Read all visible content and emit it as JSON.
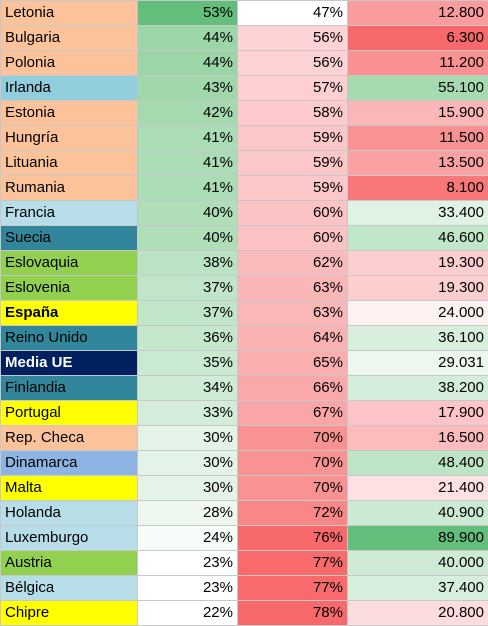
{
  "rows": [
    {
      "country": "Letonia",
      "p1": "53%",
      "p2": "47%",
      "value": "12.800",
      "bg": "#FCC39A",
      "fg": "#000000",
      "bold": false,
      "c1": "#63BE7B",
      "c2": "#FFFFFF",
      "c3": "#FA9C9E"
    },
    {
      "country": "Bulgaria",
      "p1": "44%",
      "p2": "56%",
      "value": "6.300",
      "bg": "#FCC39A",
      "fg": "#000000",
      "bold": false,
      "c1": "#9BD6A8",
      "c2": "#FDD3D5",
      "c3": "#F8696B"
    },
    {
      "country": "Polonia",
      "p1": "44%",
      "p2": "56%",
      "value": "11.200",
      "bg": "#FCC39A",
      "fg": "#000000",
      "bold": false,
      "c1": "#9BD6A8",
      "c2": "#FDD3D5",
      "c3": "#F99091"
    },
    {
      "country": "Irlanda",
      "p1": "43%",
      "p2": "57%",
      "value": "55.100",
      "bg": "#92CDDC",
      "fg": "#000000",
      "bold": false,
      "c1": "#A0D8AC",
      "c2": "#FDCFD1",
      "c3": "#A6DBB1"
    },
    {
      "country": "Estonia",
      "p1": "42%",
      "p2": "58%",
      "value": "15.900",
      "bg": "#FCC39A",
      "fg": "#000000",
      "bold": false,
      "c1": "#A5DAB0",
      "c2": "#FDCBCD",
      "c3": "#FCB6B7"
    },
    {
      "country": "Hungría",
      "p1": "41%",
      "p2": "59%",
      "value": "11.500",
      "bg": "#FCC39A",
      "fg": "#000000",
      "bold": false,
      "c1": "#AADCB5",
      "c2": "#FCC7C8",
      "c3": "#F99293"
    },
    {
      "country": "Lituania",
      "p1": "41%",
      "p2": "59%",
      "value": "13.500",
      "bg": "#FCC39A",
      "fg": "#000000",
      "bold": false,
      "c1": "#AADCB5",
      "c2": "#FCC7C8",
      "c3": "#FAA2A3"
    },
    {
      "country": "Rumania",
      "p1": "41%",
      "p2": "59%",
      "value": "8.100",
      "bg": "#FCC39A",
      "fg": "#000000",
      "bold": false,
      "c1": "#AADCB5",
      "c2": "#FCC7C8",
      "c3": "#F87778"
    },
    {
      "country": "Francia",
      "p1": "40%",
      "p2": "60%",
      "value": "33.400",
      "bg": "#B7DEE8",
      "fg": "#000000",
      "bold": false,
      "c1": "#AFDEB9",
      "c2": "#FCC3C4",
      "c3": "#E0F2E4"
    },
    {
      "country": "Suecia",
      "p1": "40%",
      "p2": "60%",
      "value": "46.600",
      "bg": "#31869B",
      "fg": "#000000",
      "bold": false,
      "c1": "#AFDEB9",
      "c2": "#FCC3C4",
      "c3": "#C1E6C9"
    },
    {
      "country": "Eslovaquia",
      "p1": "38%",
      "p2": "62%",
      "value": "19.300",
      "bg": "#92D050",
      "fg": "#000000",
      "bold": false,
      "c1": "#BAE3C3",
      "c2": "#FBBABC",
      "c3": "#FDCED0"
    },
    {
      "country": "Eslovenia",
      "p1": "37%",
      "p2": "63%",
      "value": "19.300",
      "bg": "#92D050",
      "fg": "#000000",
      "bold": false,
      "c1": "#C0E5C8",
      "c2": "#FBB6B7",
      "c3": "#FDCED0"
    },
    {
      "country": "España",
      "p1": "37%",
      "p2": "63%",
      "value": "24.000",
      "bg": "#FFFF00",
      "fg": "#000000",
      "bold": true,
      "c1": "#C0E5C8",
      "c2": "#FBB6B7",
      "c3": "#FEF1F1"
    },
    {
      "country": "Reino Unido",
      "p1": "36%",
      "p2": "64%",
      "value": "36.100",
      "bg": "#31869B",
      "fg": "#000000",
      "bold": false,
      "c1": "#C5E7CC",
      "c2": "#FBB2B3",
      "c3": "#D9EFDE"
    },
    {
      "country": "Media UE",
      "p1": "35%",
      "p2": "65%",
      "value": "29.031",
      "bg": "#002060",
      "fg": "#FFFFFF",
      "bold": true,
      "c1": "#CAE9D1",
      "c2": "#FAAEAF",
      "c3": "#EDF7EF"
    },
    {
      "country": "Finlandia",
      "p1": "34%",
      "p2": "66%",
      "value": "38.200",
      "bg": "#31869B",
      "fg": "#000000",
      "bold": false,
      "c1": "#CFEBD5",
      "c2": "#FAA9AB",
      "c3": "#D4EDDA"
    },
    {
      "country": "Portugal",
      "p1": "33%",
      "p2": "67%",
      "value": "17.900",
      "bg": "#FFFF00",
      "fg": "#000000",
      "bold": false,
      "c1": "#D4EDDA",
      "c2": "#FAA5A7",
      "c3": "#FDC5C7"
    },
    {
      "country": "Rep. Checa",
      "p1": "30%",
      "p2": "70%",
      "value": "16.500",
      "bg": "#FCC39A",
      "fg": "#000000",
      "bold": false,
      "c1": "#E3F3E7",
      "c2": "#F99293",
      "c3": "#FCBBBC"
    },
    {
      "country": "Dinamarca",
      "p1": "30%",
      "p2": "70%",
      "value": "48.400",
      "bg": "#8DB4E2",
      "fg": "#000000",
      "bold": false,
      "c1": "#E3F3E7",
      "c2": "#F99293",
      "c3": "#BCE4C5"
    },
    {
      "country": "Malta",
      "p1": "30%",
      "p2": "70%",
      "value": "21.400",
      "bg": "#FFFF00",
      "fg": "#000000",
      "bold": false,
      "c1": "#E3F3E7",
      "c2": "#F99293",
      "c3": "#FDE1E2"
    },
    {
      "country": "Holanda",
      "p1": "28%",
      "p2": "72%",
      "value": "40.900",
      "bg": "#B7DEE8",
      "fg": "#000000",
      "bold": false,
      "c1": "#EDF7EF",
      "c2": "#F98788",
      "c3": "#CCEAD3"
    },
    {
      "country": "Luxemburgo",
      "p1": "24%",
      "p2": "76%",
      "value": "89.900",
      "bg": "#B7DEE8",
      "fg": "#000000",
      "bold": false,
      "c1": "#F8FCF9",
      "c2": "#F8696B",
      "c3": "#63BE7B"
    },
    {
      "country": "Austria",
      "p1": "23%",
      "p2": "77%",
      "value": "40.000",
      "bg": "#92D050",
      "fg": "#000000",
      "bold": false,
      "c1": "#FEFFFE",
      "c2": "#F86A6C",
      "c3": "#CFEBD5"
    },
    {
      "country": "Bélgica",
      "p1": "23%",
      "p2": "77%",
      "value": "37.400",
      "bg": "#B7DEE8",
      "fg": "#000000",
      "bold": false,
      "c1": "#FEFFFE",
      "c2": "#F86A6C",
      "c3": "#D6EEDC"
    },
    {
      "country": "Chipre",
      "p1": "22%",
      "p2": "78%",
      "value": "20.800",
      "bg": "#FFFF00",
      "fg": "#000000",
      "bold": false,
      "c1": "#FFFFFF",
      "c2": "#F8696B",
      "c3": "#FDDCDD"
    }
  ]
}
